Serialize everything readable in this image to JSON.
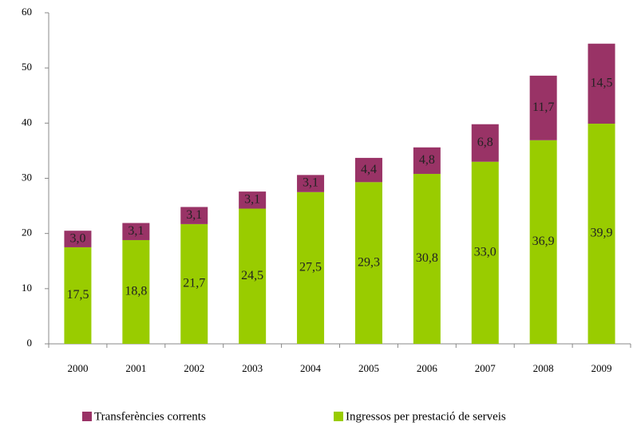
{
  "chart_data": {
    "type": "stacked_bar",
    "categories": [
      "2000",
      "2001",
      "2002",
      "2003",
      "2004",
      "2005",
      "2006",
      "2007",
      "2008",
      "2009"
    ],
    "series": [
      {
        "name": "Ingressos per prestació de serveis",
        "color": "#99cc00",
        "values": [
          17.5,
          18.8,
          21.7,
          24.5,
          27.5,
          29.3,
          30.8,
          33.0,
          36.9,
          39.9
        ],
        "value_labels": [
          "17,5",
          "18,8",
          "21,7",
          "24,5",
          "27,5",
          "29,3",
          "30,8",
          "33,0",
          "36,9",
          "39,9"
        ]
      },
      {
        "name": "Transferències corrents",
        "color": "#993366",
        "values": [
          3.0,
          3.1,
          3.1,
          3.1,
          3.1,
          4.4,
          4.8,
          6.8,
          11.7,
          14.5
        ],
        "value_labels": [
          "3,0",
          "3,1",
          "3,1",
          "3,1",
          "3,1",
          "4,4",
          "4,8",
          "6,8",
          "11,7",
          "14,5"
        ]
      }
    ],
    "ylim": [
      0,
      60
    ],
    "yticks": [
      0,
      10,
      20,
      30,
      40,
      50,
      60
    ],
    "legend": "bottom"
  }
}
